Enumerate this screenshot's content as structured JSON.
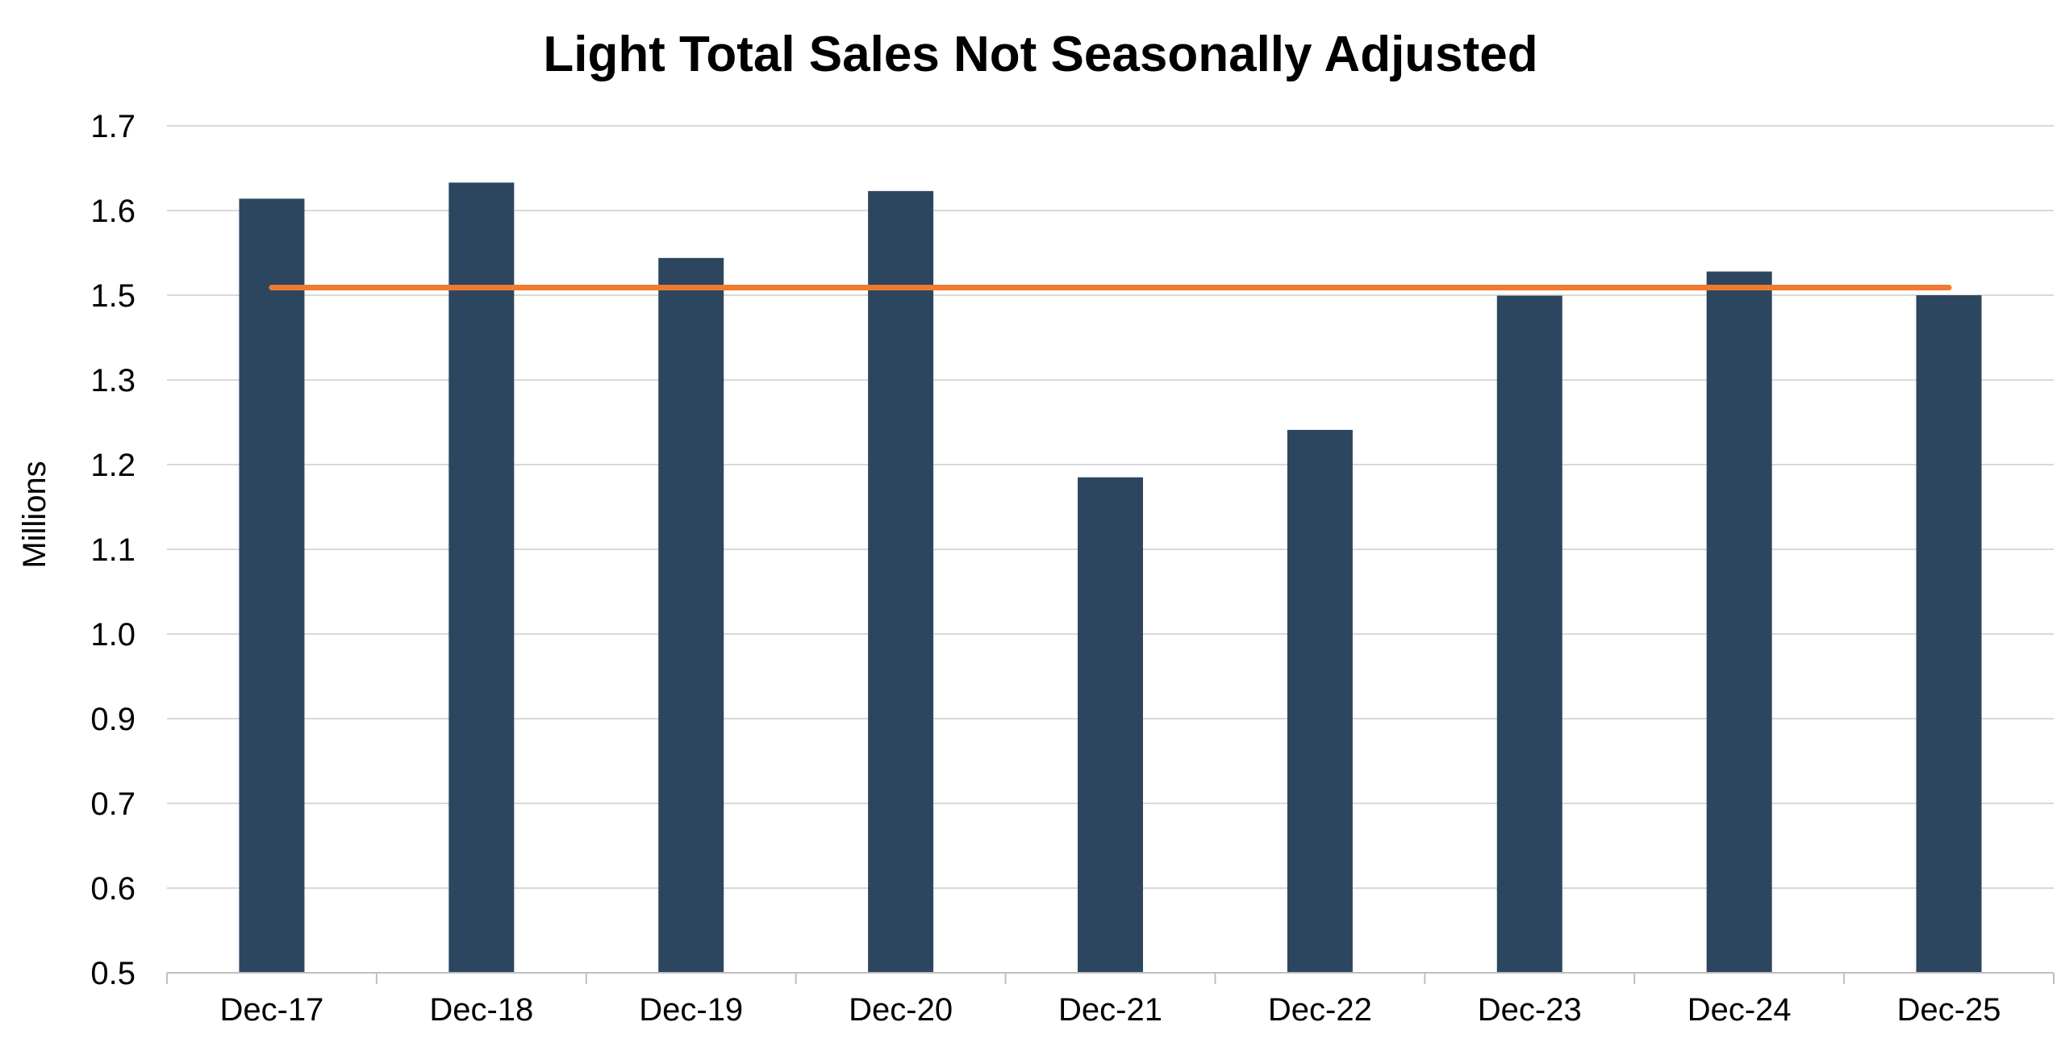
{
  "chart_data": {
    "type": "bar",
    "title": "Light Total Sales Not Seasonally Adjusted",
    "xlabel": "",
    "ylabel": "Millions",
    "categories": [
      "Dec-17",
      "Dec-18",
      "Dec-19",
      "Dec-20",
      "Dec-21",
      "Dec-22",
      "Dec-23",
      "Dec-24",
      "Dec-25"
    ],
    "series": [
      {
        "type": "bar",
        "values": [
          1.614,
          1.633,
          1.544,
          1.623,
          1.185,
          1.241,
          1.499,
          1.528,
          1.5
        ],
        "color": "#2d4660"
      },
      {
        "type": "line",
        "values": [
          1.509,
          1.509,
          1.509,
          1.509,
          1.509,
          1.509,
          1.509,
          1.509,
          1.509
        ],
        "color": "#f07a30"
      }
    ],
    "y_tick_labels": [
      "0.5",
      "0.6",
      "0.7",
      "0.9",
      "1.0",
      "1.1",
      "1.2",
      "1.3",
      "1.5",
      "1.6",
      "1.7"
    ],
    "ylim": [
      0.5,
      1.7
    ],
    "grid": true,
    "legend": "none"
  }
}
